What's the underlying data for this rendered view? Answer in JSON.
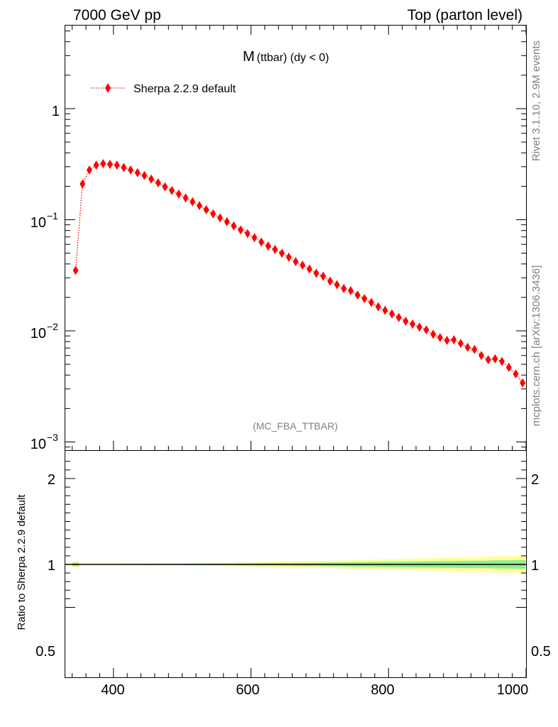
{
  "header": {
    "left": "7000 GeV pp",
    "right": "Top (parton level)"
  },
  "side_labels": {
    "rivet": "Rivet 3.1.10,  2.9M events",
    "mcplots": "mcplots.cern.ch [arXiv:1306.3436]"
  },
  "plot": {
    "title_main": "M",
    "title_sub": "(ttbar) (dy < 0)",
    "watermark": "(MC_FBA_TTBAR)",
    "ratio_ylabel": "Ratio to Sherpa 2.2.9 default"
  },
  "colors": {
    "marker": "#ff0000",
    "band_inner": "#90ee90",
    "band_outer": "#ffff99"
  },
  "chart_data": {
    "type": "scatter",
    "x": [
      345,
      355,
      365,
      375,
      385,
      395,
      405,
      415,
      425,
      435,
      445,
      455,
      465,
      475,
      485,
      495,
      505,
      515,
      525,
      535,
      545,
      555,
      565,
      575,
      585,
      595,
      605,
      615,
      625,
      635,
      645,
      655,
      665,
      675,
      685,
      695,
      705,
      715,
      725,
      735,
      745,
      755,
      765,
      775,
      785,
      795,
      805,
      815,
      825,
      835,
      845,
      855,
      865,
      875,
      885,
      895,
      905,
      915,
      925,
      935,
      945,
      955,
      965,
      975,
      985,
      995
    ],
    "series": [
      {
        "name": "Sherpa 2.2.9 default",
        "values": [
          0.035,
          0.21,
          0.28,
          0.31,
          0.32,
          0.315,
          0.31,
          0.295,
          0.28,
          0.265,
          0.25,
          0.232,
          0.215,
          0.198,
          0.183,
          0.17,
          0.157,
          0.145,
          0.134,
          0.123,
          0.113,
          0.104,
          0.096,
          0.088,
          0.081,
          0.075,
          0.069,
          0.063,
          0.058,
          0.054,
          0.05,
          0.046,
          0.042,
          0.039,
          0.036,
          0.033,
          0.031,
          0.028,
          0.026,
          0.024,
          0.023,
          0.021,
          0.0195,
          0.018,
          0.0165,
          0.0153,
          0.0142,
          0.0132,
          0.0122,
          0.0115,
          0.0108,
          0.0102,
          0.0093,
          0.0087,
          0.0082,
          0.0083,
          0.0077,
          0.0071,
          0.0068,
          0.006,
          0.0055,
          0.0056,
          0.0053,
          0.0047,
          0.0041,
          0.0034
        ]
      }
    ],
    "ratio": {
      "values": [
        1,
        1,
        1,
        1,
        1,
        1,
        1,
        1,
        1,
        1,
        1,
        1,
        1,
        1,
        1,
        1,
        1,
        1,
        1,
        1,
        1,
        1,
        1,
        1,
        1,
        1,
        1,
        1,
        1,
        1,
        1,
        1,
        1,
        1,
        1,
        1,
        1,
        1,
        1,
        1,
        1,
        1,
        1,
        1,
        1,
        1,
        1,
        1,
        1,
        1,
        1,
        1,
        1,
        1,
        1,
        1,
        1,
        1,
        1,
        1,
        1,
        1,
        1,
        1,
        1,
        1
      ],
      "inner_err": [
        0.02,
        0.004,
        0.004,
        0.004,
        0.004,
        0.004,
        0.004,
        0.005,
        0.005,
        0.005,
        0.006,
        0.006,
        0.006,
        0.007,
        0.007,
        0.007,
        0.008,
        0.008,
        0.009,
        0.009,
        0.01,
        0.01,
        0.011,
        0.011,
        0.012,
        0.012,
        0.013,
        0.014,
        0.014,
        0.015,
        0.016,
        0.016,
        0.017,
        0.018,
        0.019,
        0.02,
        0.021,
        0.022,
        0.023,
        0.024,
        0.025,
        0.026,
        0.027,
        0.028,
        0.029,
        0.03,
        0.031,
        0.032,
        0.033,
        0.034,
        0.035,
        0.036,
        0.037,
        0.038,
        0.039,
        0.04,
        0.041,
        0.042,
        0.043,
        0.044,
        0.045,
        0.047,
        0.048,
        0.049,
        0.05,
        0.05
      ],
      "outer_err": [
        0.035,
        0.008,
        0.008,
        0.008,
        0.008,
        0.008,
        0.009,
        0.009,
        0.01,
        0.01,
        0.011,
        0.011,
        0.012,
        0.012,
        0.013,
        0.014,
        0.015,
        0.016,
        0.017,
        0.018,
        0.019,
        0.02,
        0.021,
        0.022,
        0.023,
        0.024,
        0.025,
        0.027,
        0.028,
        0.03,
        0.031,
        0.033,
        0.034,
        0.036,
        0.038,
        0.04,
        0.041,
        0.043,
        0.045,
        0.047,
        0.049,
        0.051,
        0.053,
        0.055,
        0.057,
        0.059,
        0.061,
        0.063,
        0.065,
        0.067,
        0.069,
        0.071,
        0.073,
        0.075,
        0.077,
        0.079,
        0.081,
        0.083,
        0.085,
        0.087,
        0.089,
        0.092,
        0.094,
        0.096,
        0.098,
        0.1
      ]
    },
    "xlim": [
      330,
      1000
    ],
    "ylim": [
      0.0008,
      6
    ],
    "yscale": "log",
    "ratio_ylim": [
      0.4,
      2.4
    ],
    "xticks": [
      "400",
      "600",
      "800",
      "1000"
    ],
    "yticks_main": [
      "1",
      "10",
      "10",
      "10"
    ],
    "yticks_main_exp": [
      "",
      "−1",
      "−2",
      "−3"
    ],
    "yticks_ratio": [
      "2",
      "1",
      "0.5"
    ],
    "legend_placement": "top-left",
    "grid": false
  }
}
